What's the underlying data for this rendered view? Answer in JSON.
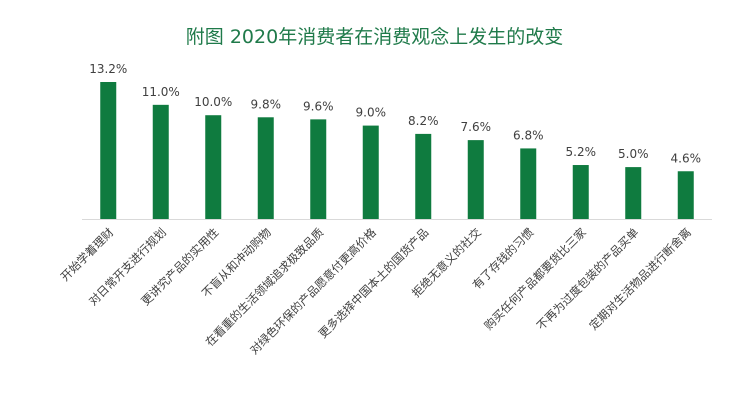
{
  "chart_data": {
    "type": "bar",
    "title": "附图  2020年消费者在消费观念上发生的改变",
    "categories": [
      "开始学着理财",
      "对日常开支进行规划",
      "更讲究产品的实用性",
      "不盲从和冲动购物",
      "在看重的生活领域追求极致品质",
      "对绿色环保的产品愿意付更高价格",
      "更多选择中国本土的国货产品",
      "拒绝无意义的社交",
      "有了存钱的习惯",
      "购买任何产品都要货比三家",
      "不再为过度包装的产品买单",
      "定期对生活物品进行断舍离"
    ],
    "values": [
      13.2,
      11.0,
      10.0,
      9.8,
      9.6,
      9.0,
      8.2,
      7.6,
      6.8,
      5.2,
      5.0,
      4.6
    ],
    "value_labels": [
      "13.2%",
      "11.0%",
      "10.0%",
      "9.8%",
      "9.6%",
      "9.0%",
      "8.2%",
      "7.6%",
      "6.8%",
      "5.2%",
      "5.0%",
      "4.6%"
    ],
    "ylim": [
      0,
      13.2
    ],
    "grid": false,
    "legend": "none",
    "bar_color": "#0f7b3f",
    "axis_color": "#d9d9d9",
    "title_color": "#1f7a4a"
  }
}
